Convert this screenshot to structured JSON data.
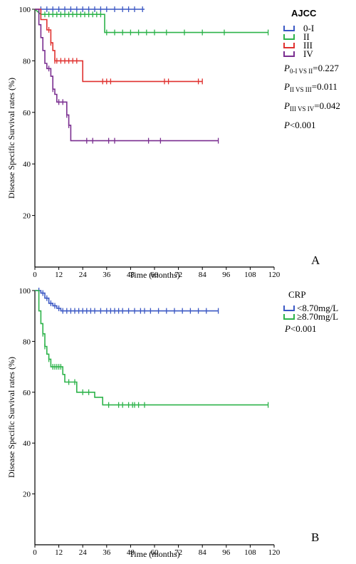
{
  "chart_data": [
    {
      "type": "line",
      "panel_label": "A",
      "xlabel": "Time (months)",
      "ylabel": "Disease Specific Survival rates (%)",
      "xlim": [
        0,
        120
      ],
      "ylim": [
        0,
        100
      ],
      "xticks": [
        0,
        12,
        24,
        36,
        48,
        60,
        72,
        84,
        96,
        108,
        120
      ],
      "yticks": [
        20,
        40,
        60,
        80,
        100
      ],
      "legend_title": "AJCC",
      "legend_position": "top-right",
      "annotations": {
        "p1": {
          "sub": "0-I VS II",
          "val": "=0.227"
        },
        "p2": {
          "sub": "II VS III",
          "val": "=0.011"
        },
        "p3": {
          "sub": "III VS IV",
          "val": "=0.042"
        },
        "p4": {
          "val": "<0.001"
        }
      },
      "series": [
        {
          "name": "0-I",
          "color": "#3a57c4",
          "steps": [
            [
              0,
              100
            ],
            [
              55,
              100
            ]
          ],
          "censors": [
            3,
            6,
            9,
            12,
            15,
            18,
            21,
            24,
            27,
            30,
            33,
            36,
            40,
            44,
            47,
            50,
            54
          ]
        },
        {
          "name": "II",
          "color": "#2db34a",
          "steps": [
            [
              0,
              100
            ],
            [
              3,
              98
            ],
            [
              35,
              98
            ],
            [
              35,
              91
            ],
            [
              117,
              91
            ]
          ],
          "censors": [
            5,
            7,
            9,
            11,
            13,
            15,
            17,
            19,
            21,
            23,
            25,
            27,
            29,
            31,
            33,
            36,
            40,
            44,
            48,
            52,
            56,
            60,
            66,
            75,
            84,
            95,
            117
          ]
        },
        {
          "name": "III",
          "color": "#e0312f",
          "steps": [
            [
              0,
              100
            ],
            [
              3,
              100
            ],
            [
              3,
              96
            ],
            [
              6,
              96
            ],
            [
              6,
              92
            ],
            [
              8,
              92
            ],
            [
              8,
              87
            ],
            [
              9,
              87
            ],
            [
              9,
              84
            ],
            [
              10,
              84
            ],
            [
              10,
              80
            ],
            [
              24,
              80
            ],
            [
              24,
              72
            ],
            [
              84,
              72
            ]
          ],
          "censors": [
            7,
            8,
            10,
            11,
            13,
            15,
            17,
            19,
            21,
            34,
            36,
            38,
            65,
            67,
            82,
            84
          ]
        },
        {
          "name": "IV",
          "color": "#7a2e90",
          "steps": [
            [
              0,
              100
            ],
            [
              2,
              100
            ],
            [
              2,
              94
            ],
            [
              3,
              94
            ],
            [
              3,
              89
            ],
            [
              4,
              89
            ],
            [
              4,
              84
            ],
            [
              5,
              84
            ],
            [
              5,
              79
            ],
            [
              6,
              79
            ],
            [
              6,
              77
            ],
            [
              8,
              77
            ],
            [
              8,
              74
            ],
            [
              9,
              74
            ],
            [
              9,
              69
            ],
            [
              10,
              69
            ],
            [
              10,
              67
            ],
            [
              11,
              67
            ],
            [
              11,
              64
            ],
            [
              16,
              64
            ],
            [
              16,
              59
            ],
            [
              17,
              59
            ],
            [
              17,
              55
            ],
            [
              18,
              55
            ],
            [
              18,
              49
            ],
            [
              92,
              49
            ]
          ],
          "censors": [
            7,
            9,
            12,
            14,
            16,
            17,
            26,
            29,
            37,
            40,
            57,
            63,
            92
          ]
        }
      ]
    },
    {
      "type": "line",
      "panel_label": "B",
      "xlabel": "Time (months)",
      "ylabel": "Disease Specific Survival rates (%)",
      "xlim": [
        0,
        120
      ],
      "ylim": [
        0,
        100
      ],
      "xticks": [
        0,
        12,
        24,
        36,
        48,
        60,
        72,
        84,
        96,
        108,
        120
      ],
      "yticks": [
        20,
        40,
        60,
        80,
        100
      ],
      "legend_title": "CRP",
      "legend_position": "top-right",
      "annotations": {
        "p4": {
          "val": "<0.001"
        }
      },
      "series": [
        {
          "name": "<8.70mg/L",
          "color": "#3a57c4",
          "steps": [
            [
              0,
              100
            ],
            [
              3,
              100
            ],
            [
              3,
              99
            ],
            [
              5,
              99
            ],
            [
              5,
              97
            ],
            [
              7,
              97
            ],
            [
              7,
              95
            ],
            [
              9,
              95
            ],
            [
              9,
              94
            ],
            [
              11,
              94
            ],
            [
              11,
              93
            ],
            [
              13,
              93
            ],
            [
              13,
              92
            ],
            [
              92,
              92
            ]
          ],
          "censors": [
            2,
            4,
            6,
            8,
            10,
            12,
            14,
            16,
            18,
            20,
            22,
            24,
            26,
            28,
            30,
            33,
            36,
            38,
            40,
            42,
            44,
            47,
            50,
            53,
            55,
            58,
            62,
            66,
            70,
            74,
            78,
            82,
            86,
            92
          ]
        },
        {
          "name": "≥8.70mg/L",
          "color": "#2db34a",
          "steps": [
            [
              0,
              100
            ],
            [
              2,
              100
            ],
            [
              2,
              92
            ],
            [
              3,
              92
            ],
            [
              3,
              87
            ],
            [
              4,
              87
            ],
            [
              4,
              83
            ],
            [
              5,
              83
            ],
            [
              5,
              78
            ],
            [
              6,
              78
            ],
            [
              6,
              75
            ],
            [
              7,
              75
            ],
            [
              7,
              73
            ],
            [
              8,
              73
            ],
            [
              8,
              70
            ],
            [
              14,
              70
            ],
            [
              14,
              67
            ],
            [
              15,
              67
            ],
            [
              15,
              64
            ],
            [
              21,
              64
            ],
            [
              21,
              60
            ],
            [
              30,
              60
            ],
            [
              30,
              58
            ],
            [
              34,
              58
            ],
            [
              34,
              55
            ],
            [
              117,
              55
            ]
          ],
          "censors": [
            4,
            5,
            7,
            9,
            10,
            11,
            12,
            13,
            17,
            20,
            24,
            27,
            37,
            42,
            44,
            47,
            49,
            50,
            52,
            55,
            117
          ]
        }
      ]
    }
  ]
}
